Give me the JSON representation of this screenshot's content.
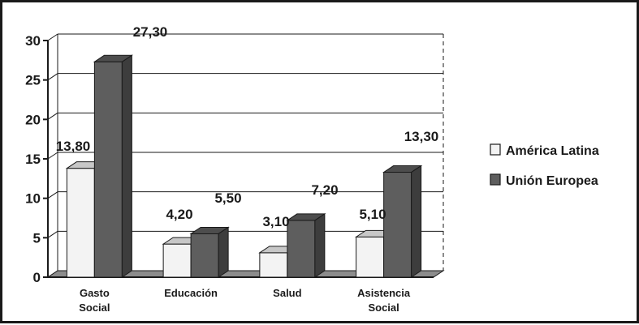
{
  "chart_data": {
    "type": "bar",
    "categories": [
      [
        "Gasto",
        "Social"
      ],
      [
        "Educación"
      ],
      [
        "Salud"
      ],
      [
        "Asistencia",
        "Social"
      ]
    ],
    "series": [
      {
        "name": "América Latina",
        "color": "#f3f3f3",
        "values": [
          13.8,
          4.2,
          3.1,
          5.1
        ],
        "labels": [
          "13,80",
          "4,20",
          "3,10",
          "5,10"
        ]
      },
      {
        "name": "Unión Europea",
        "color": "#5e5e5e",
        "values": [
          27.3,
          5.5,
          7.2,
          13.3
        ],
        "labels": [
          "27,30",
          "5,50",
          "7,20",
          "13,30"
        ]
      }
    ],
    "ylim": [
      0,
      30
    ],
    "yticks": [
      0,
      5,
      10,
      15,
      20,
      25,
      30
    ],
    "grid": true,
    "legend": "right",
    "title": "",
    "xlabel": "",
    "ylabel": ""
  }
}
